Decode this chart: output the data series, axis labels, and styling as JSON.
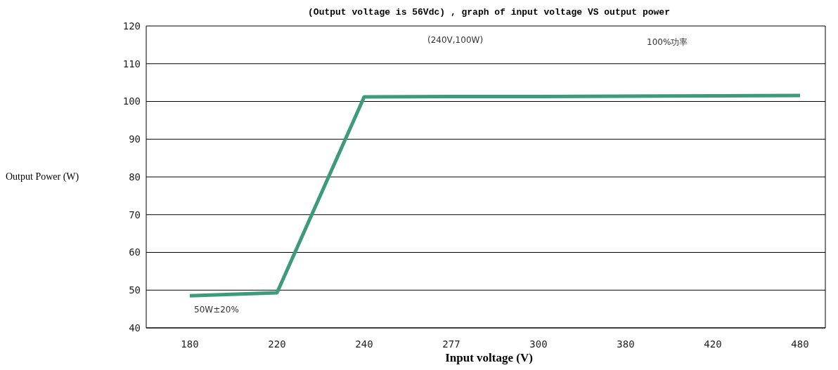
{
  "chart_data": {
    "type": "line",
    "title": "(Output voltage is 56Vdc) , graph of input voltage VS output power",
    "xlabel": "Input voltage (V)",
    "ylabel": "Output Power (W)",
    "categories": [
      "180",
      "220",
      "240",
      "277",
      "300",
      "380",
      "420",
      "480"
    ],
    "series": [
      {
        "color": "#3d9a7c",
        "values": [
          48.5,
          49.3,
          101.2,
          101.3,
          101.3,
          101.4,
          101.5,
          101.6
        ]
      }
    ],
    "ylim": [
      40,
      120
    ],
    "yticks": [
      40,
      50,
      60,
      70,
      80,
      90,
      100,
      110,
      120
    ],
    "grid": "y",
    "marker": "none",
    "line_style": "solid",
    "annotations": [
      "(240V,100W)",
      "100%功率",
      "50W±20%"
    ]
  }
}
